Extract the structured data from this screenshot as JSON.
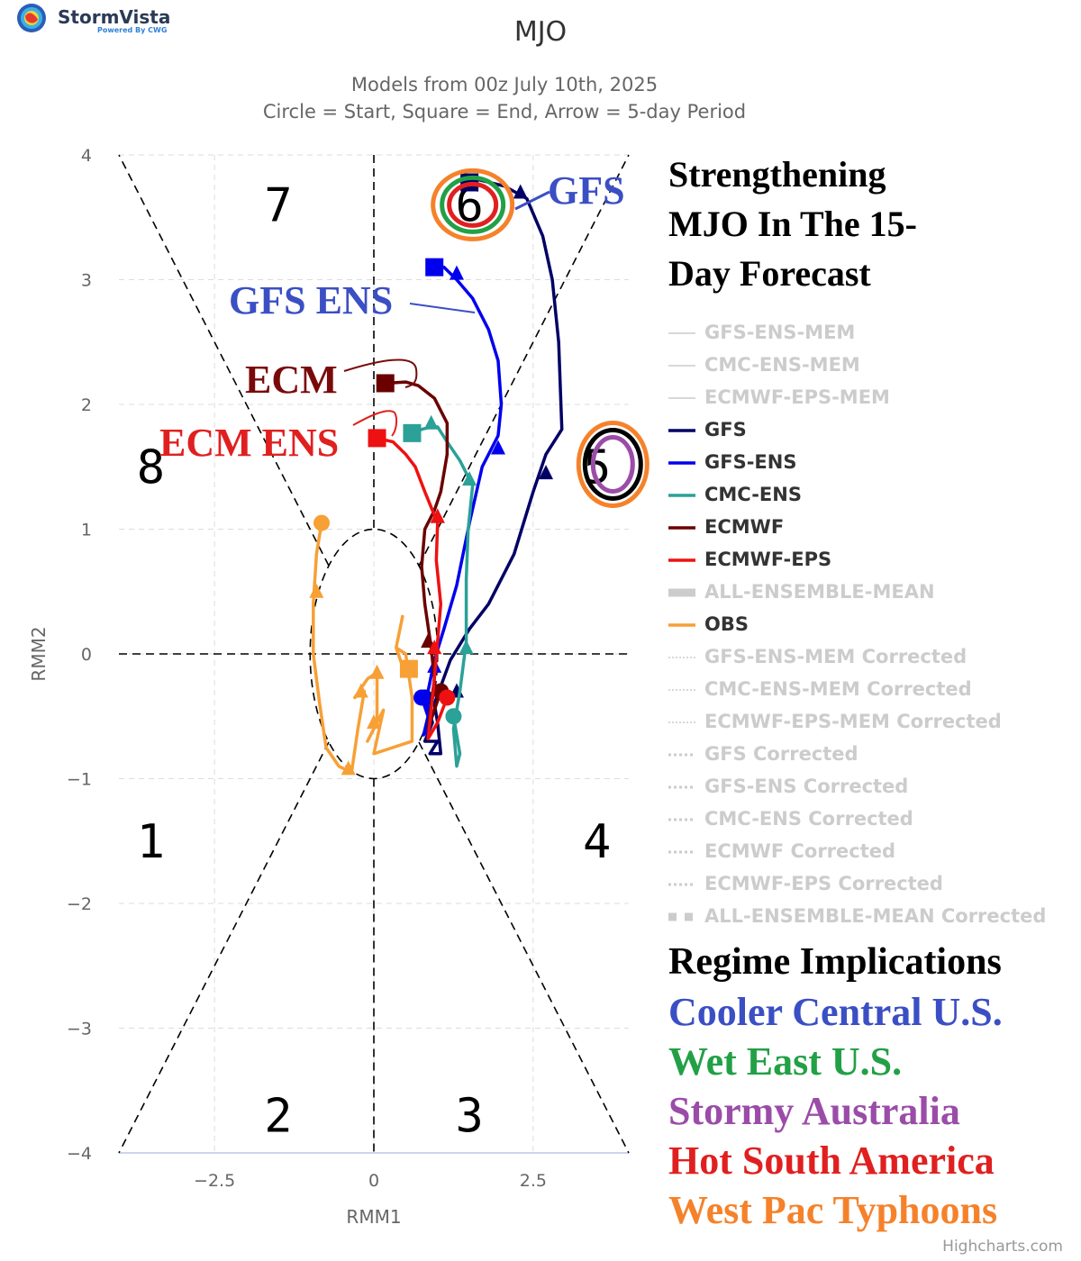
{
  "brand": {
    "name": "StormVista",
    "tagline": "Powered By CWG"
  },
  "title": "MJO",
  "subtitle_lines": [
    "Models from 00z July 10th, 2025",
    "Circle = Start, Square = End, Arrow = 5-day Period"
  ],
  "credits": "Highcharts.com",
  "colors": {
    "GFS": "#000066",
    "GFS-ENS": "#0000ee",
    "CMC-ENS": "#2ba198",
    "ECMWF": "#6b0000",
    "ECMWF-EPS": "#ee1111",
    "OBS": "#f7a035",
    "hidden": "#cccccc"
  },
  "annotations": {
    "headline": [
      "Strengthening",
      "MJO In The 15-",
      "Day Forecast"
    ],
    "model_labels": {
      "gfs": "GFS",
      "gfs_ens": "GFS ENS",
      "ecm": "ECM",
      "ecm_ens": "ECM ENS"
    },
    "phase_labels": [
      "1",
      "2",
      "3",
      "4",
      "5",
      "6",
      "7",
      "8"
    ],
    "regime_title": "Regime Implications",
    "regimes": [
      {
        "text": "Cooler Central U.S.",
        "color": "#3b4fc4"
      },
      {
        "text": "Wet East U.S.",
        "color": "#22a046"
      },
      {
        "text": "Stormy Australia",
        "color": "#9b4ca8"
      },
      {
        "text": "Hot South America",
        "color": "#e02020"
      },
      {
        "text": "West Pac Typhoons",
        "color": "#f5822a"
      }
    ]
  },
  "legend": [
    {
      "label": "GFS-ENS-MEM",
      "visible": false,
      "style": "thin"
    },
    {
      "label": "CMC-ENS-MEM",
      "visible": false,
      "style": "thin"
    },
    {
      "label": "ECMWF-EPS-MEM",
      "visible": false,
      "style": "thin"
    },
    {
      "label": "GFS",
      "visible": true,
      "style": "solid",
      "color": "#000066"
    },
    {
      "label": "GFS-ENS",
      "visible": true,
      "style": "solid",
      "color": "#0000ee"
    },
    {
      "label": "CMC-ENS",
      "visible": true,
      "style": "solid",
      "color": "#2ba198"
    },
    {
      "label": "ECMWF",
      "visible": true,
      "style": "solid",
      "color": "#6b0000"
    },
    {
      "label": "ECMWF-EPS",
      "visible": true,
      "style": "solid",
      "color": "#ee1111"
    },
    {
      "label": "ALL-ENSEMBLE-MEAN",
      "visible": false,
      "style": "thick"
    },
    {
      "label": "OBS",
      "visible": true,
      "style": "solid",
      "color": "#f7a035"
    },
    {
      "label": "GFS-ENS-MEM Corrected",
      "visible": false,
      "style": "dotted-thin"
    },
    {
      "label": "CMC-ENS-MEM Corrected",
      "visible": false,
      "style": "dotted-thin"
    },
    {
      "label": "ECMWF-EPS-MEM Corrected",
      "visible": false,
      "style": "dotted-thin"
    },
    {
      "label": "GFS Corrected",
      "visible": false,
      "style": "dotted"
    },
    {
      "label": "GFS-ENS Corrected",
      "visible": false,
      "style": "dotted"
    },
    {
      "label": "CMC-ENS Corrected",
      "visible": false,
      "style": "dotted"
    },
    {
      "label": "ECMWF Corrected",
      "visible": false,
      "style": "dotted"
    },
    {
      "label": "ECMWF-EPS Corrected",
      "visible": false,
      "style": "dotted"
    },
    {
      "label": "ALL-ENSEMBLE-MEAN Corrected",
      "visible": false,
      "style": "dashed-thick"
    }
  ],
  "chart_data": {
    "type": "scatter",
    "title": "MJO",
    "xlabel": "RMM1",
    "ylabel": "RMM2",
    "xlim": [
      -4,
      4
    ],
    "ylim": [
      -4,
      4
    ],
    "x_ticks": [
      -2.5,
      0,
      2.5
    ],
    "y_ticks": [
      4,
      3,
      2,
      1,
      0,
      -1,
      -2,
      -3,
      -4
    ],
    "x_tick_labels": [
      "−2.5",
      "0",
      "2.5"
    ],
    "y_tick_labels": [
      "4",
      "3",
      "2",
      "1",
      "0",
      "−1",
      "−2",
      "−3",
      "−4"
    ],
    "grid": true,
    "series": [
      {
        "name": "OBS",
        "color": "#f7a035",
        "points": [
          [
            -0.82,
            1.05
          ],
          [
            -0.9,
            0.8
          ],
          [
            -0.95,
            0.4
          ],
          [
            -0.95,
            0.0
          ],
          [
            -0.85,
            -0.4
          ],
          [
            -0.75,
            -0.75
          ],
          [
            -0.55,
            -0.9
          ],
          [
            -0.35,
            -0.95
          ],
          [
            -0.25,
            -0.6
          ],
          [
            -0.15,
            -0.3
          ],
          [
            -0.3,
            -0.35
          ],
          [
            -0.1,
            -0.2
          ],
          [
            0.05,
            -0.15
          ],
          [
            0.05,
            -0.55
          ],
          [
            -0.1,
            -0.7
          ],
          [
            0.15,
            -0.45
          ],
          [
            0.0,
            -0.8
          ],
          [
            0.3,
            -0.75
          ],
          [
            0.6,
            -0.7
          ],
          [
            0.6,
            -0.35
          ],
          [
            0.5,
            0.0
          ],
          [
            0.35,
            0.05
          ],
          [
            0.45,
            0.3
          ],
          [
            0.35,
            0.05
          ],
          [
            0.45,
            -0.1
          ],
          [
            0.55,
            -0.12
          ]
        ],
        "arrows": [
          [
            -0.9,
            0.5
          ],
          [
            -0.4,
            -0.92
          ],
          [
            -0.2,
            -0.3
          ],
          [
            0.0,
            -0.55
          ],
          [
            0.05,
            -0.15
          ]
        ]
      },
      {
        "name": "GFS",
        "color": "#000066",
        "points": [
          [
            0.8,
            -0.35
          ],
          [
            0.92,
            -0.55
          ],
          [
            0.8,
            -0.7
          ],
          [
            1.0,
            -0.7
          ],
          [
            0.88,
            -0.8
          ],
          [
            1.05,
            -0.8
          ],
          [
            1.0,
            -0.55
          ],
          [
            0.95,
            -0.4
          ],
          [
            1.2,
            -0.05
          ],
          [
            1.5,
            0.2
          ],
          [
            1.8,
            0.4
          ],
          [
            2.2,
            0.8
          ],
          [
            2.5,
            1.3
          ],
          [
            2.7,
            1.6
          ],
          [
            2.95,
            1.8
          ],
          [
            2.9,
            2.5
          ],
          [
            2.8,
            3.0
          ],
          [
            2.65,
            3.35
          ],
          [
            2.4,
            3.65
          ],
          [
            2.05,
            3.75
          ],
          [
            1.65,
            3.8
          ],
          [
            1.5,
            3.78
          ]
        ],
        "arrows": [
          [
            1.3,
            -0.3
          ],
          [
            2.7,
            1.45
          ],
          [
            2.3,
            3.7
          ]
        ]
      },
      {
        "name": "GFS-ENS",
        "color": "#0000ee",
        "points": [
          [
            0.75,
            -0.35
          ],
          [
            0.85,
            -0.5
          ],
          [
            0.78,
            -0.65
          ],
          [
            0.85,
            -0.6
          ],
          [
            0.85,
            -0.3
          ],
          [
            0.95,
            -0.05
          ],
          [
            1.1,
            0.2
          ],
          [
            1.3,
            0.55
          ],
          [
            1.5,
            1.05
          ],
          [
            1.7,
            1.5
          ],
          [
            1.95,
            1.75
          ],
          [
            2.0,
            2.0
          ],
          [
            1.95,
            2.35
          ],
          [
            1.8,
            2.6
          ],
          [
            1.55,
            2.85
          ],
          [
            1.3,
            3.0
          ],
          [
            1.1,
            3.1
          ],
          [
            0.95,
            3.1
          ]
        ],
        "arrows": [
          [
            0.95,
            -0.1
          ],
          [
            1.95,
            1.65
          ],
          [
            1.3,
            3.05
          ]
        ]
      },
      {
        "name": "CMC-ENS",
        "color": "#2ba198",
        "points": [
          [
            1.25,
            -0.5
          ],
          [
            1.35,
            -0.8
          ],
          [
            1.3,
            -0.9
          ],
          [
            1.25,
            -0.6
          ],
          [
            1.35,
            -0.3
          ],
          [
            1.45,
            0.1
          ],
          [
            1.45,
            0.6
          ],
          [
            1.48,
            1.0
          ],
          [
            1.55,
            1.35
          ],
          [
            1.35,
            1.55
          ],
          [
            1.15,
            1.7
          ],
          [
            1.0,
            1.82
          ],
          [
            0.9,
            1.82
          ],
          [
            0.75,
            1.8
          ],
          [
            0.6,
            1.77
          ]
        ],
        "arrows": [
          [
            1.45,
            0.05
          ],
          [
            1.5,
            1.4
          ],
          [
            0.9,
            1.85
          ]
        ]
      },
      {
        "name": "ECMWF",
        "color": "#6b0000",
        "points": [
          [
            1.05,
            -0.3
          ],
          [
            0.85,
            -0.6
          ],
          [
            0.9,
            -0.4
          ],
          [
            0.95,
            -0.2
          ],
          [
            0.9,
            0.05
          ],
          [
            0.8,
            0.4
          ],
          [
            0.75,
            0.7
          ],
          [
            0.8,
            1.0
          ],
          [
            0.95,
            1.15
          ],
          [
            1.05,
            1.3
          ],
          [
            1.15,
            1.6
          ],
          [
            1.15,
            1.85
          ],
          [
            0.95,
            2.05
          ],
          [
            0.7,
            2.15
          ],
          [
            0.5,
            2.18
          ],
          [
            0.18,
            2.17
          ]
        ],
        "arrows": [
          [
            0.85,
            0.1
          ],
          [
            1.0,
            1.1
          ]
        ]
      },
      {
        "name": "ECMWF-EPS",
        "color": "#ee1111",
        "points": [
          [
            1.15,
            -0.35
          ],
          [
            1.0,
            -0.55
          ],
          [
            0.85,
            -0.68
          ],
          [
            0.9,
            -0.45
          ],
          [
            0.95,
            -0.2
          ],
          [
            1.0,
            0.1
          ],
          [
            1.05,
            0.4
          ],
          [
            0.98,
            0.75
          ],
          [
            1.0,
            1.05
          ],
          [
            0.8,
            1.3
          ],
          [
            0.65,
            1.5
          ],
          [
            0.5,
            1.6
          ],
          [
            0.3,
            1.7
          ],
          [
            0.05,
            1.73
          ]
        ],
        "arrows": [
          [
            0.95,
            0.05
          ],
          [
            1.0,
            1.1
          ]
        ]
      }
    ],
    "hidden_series": [
      "GFS-ENS-MEM",
      "CMC-ENS-MEM",
      "ECMWF-EPS-MEM",
      "ALL-ENSEMBLE-MEAN",
      "GFS-ENS-MEM Corrected",
      "CMC-ENS-MEM Corrected",
      "ECMWF-EPS-MEM Corrected",
      "GFS Corrected",
      "GFS-ENS Corrected",
      "CMC-ENS Corrected",
      "ECMWF Corrected",
      "ECMWF-EPS Corrected",
      "ALL-ENSEMBLE-MEAN Corrected"
    ]
  }
}
